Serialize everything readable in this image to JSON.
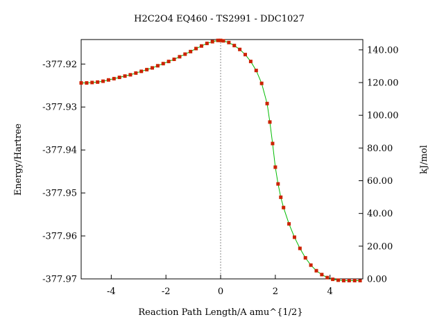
{
  "chart_data": {
    "type": "line",
    "title": "H2C2O4    EQ460 - TS2991 - DDC1027",
    "xlabel": "Reaction Path Length/A amu^{1/2}",
    "ylabel": "Energy/Hartree",
    "y2label": "kJ/mol",
    "xlim": [
      -5.1,
      5.2
    ],
    "ylim": [
      -377.97,
      -377.9143
    ],
    "y2lim": [
      0.0,
      146.3
    ],
    "x_ticks": [
      -4,
      -2,
      0,
      2,
      4
    ],
    "x_tick_labels": [
      "-4",
      "-2",
      "0",
      "2",
      "4"
    ],
    "y_ticks": [
      -377.92,
      -377.93,
      -377.94,
      -377.95,
      -377.96,
      -377.97
    ],
    "y_tick_labels": [
      "-377.92",
      "-377.93",
      "-377.94",
      "-377.95",
      "-377.96",
      "-377.97"
    ],
    "y2_ticks": [
      140,
      120,
      100,
      80,
      60,
      40,
      20,
      0
    ],
    "y2_tick_labels": [
      "140.00",
      "120.00",
      "100.00",
      "80.00",
      "60.00",
      "40.00",
      "20.00",
      "0.00"
    ],
    "ts_marker_x": 0,
    "line_color": "#00bb00",
    "marker_color": "#cc2200",
    "dashed_line_color": "#888888",
    "grid": false,
    "series": [
      {
        "x": [
          -5.1,
          -4.9,
          -4.7,
          -4.5,
          -4.3,
          -4.1,
          -3.9,
          -3.7,
          -3.5,
          -3.3,
          -3.1,
          -2.9,
          -2.7,
          -2.5,
          -2.3,
          -2.1,
          -1.9,
          -1.7,
          -1.5,
          -1.3,
          -1.1,
          -0.9,
          -0.7,
          -0.5,
          -0.3,
          -0.1,
          0.0,
          0.1,
          0.3,
          0.5,
          0.7,
          0.9,
          1.1,
          1.3,
          1.5,
          1.7,
          1.8,
          1.9,
          2.0,
          2.1,
          2.2,
          2.3,
          2.5,
          2.7,
          2.9,
          3.1,
          3.3,
          3.5,
          3.7,
          3.9,
          4.1,
          4.3,
          4.5,
          4.7,
          4.9,
          5.1
        ],
        "y": [
          -377.9244,
          -377.9244,
          -377.9243,
          -377.9242,
          -377.924,
          -377.9237,
          -377.9234,
          -377.9231,
          -377.9228,
          -377.9225,
          -377.9221,
          -377.9217,
          -377.9213,
          -377.9209,
          -377.9204,
          -377.9199,
          -377.9194,
          -377.9189,
          -377.9183,
          -377.9177,
          -377.9171,
          -377.9164,
          -377.9158,
          -377.9152,
          -377.9148,
          -377.9145,
          -377.9145,
          -377.9146,
          -377.915,
          -377.9157,
          -377.9166,
          -377.9178,
          -377.9194,
          -377.9215,
          -377.9245,
          -377.9292,
          -377.9335,
          -377.9385,
          -377.944,
          -377.9479,
          -377.951,
          -377.9534,
          -377.9572,
          -377.9603,
          -377.9629,
          -377.9651,
          -377.9668,
          -377.9681,
          -377.969,
          -377.9697,
          -377.9701,
          -377.9703,
          -377.9704,
          -377.9704,
          -377.9704,
          -377.9704
        ]
      }
    ]
  }
}
